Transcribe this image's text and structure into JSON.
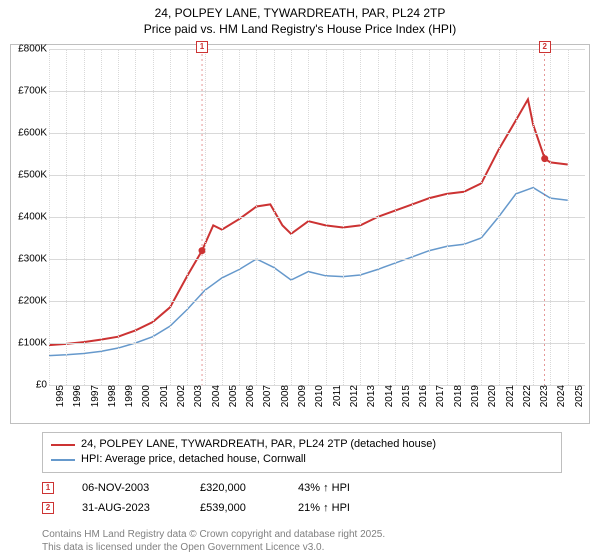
{
  "title_line1": "24, POLPEY LANE, TYWARDREATH, PAR, PL24 2TP",
  "title_line2": "Price paid vs. HM Land Registry's House Price Index (HPI)",
  "chart": {
    "type": "line",
    "x_min": 1995,
    "x_max": 2026,
    "y_min": 0,
    "y_max": 800000,
    "y_ticks": [
      {
        "v": 0,
        "label": "£0"
      },
      {
        "v": 100000,
        "label": "£100K"
      },
      {
        "v": 200000,
        "label": "£200K"
      },
      {
        "v": 300000,
        "label": "£300K"
      },
      {
        "v": 400000,
        "label": "£400K"
      },
      {
        "v": 500000,
        "label": "£500K"
      },
      {
        "v": 600000,
        "label": "£600K"
      },
      {
        "v": 700000,
        "label": "£700K"
      },
      {
        "v": 800000,
        "label": "£800K"
      }
    ],
    "x_ticks": [
      1995,
      1996,
      1997,
      1998,
      1999,
      2000,
      2001,
      2002,
      2003,
      2004,
      2005,
      2006,
      2007,
      2008,
      2009,
      2010,
      2011,
      2012,
      2013,
      2014,
      2015,
      2016,
      2017,
      2018,
      2019,
      2020,
      2021,
      2022,
      2023,
      2024,
      2025
    ],
    "grid_color": "#d9d9d9",
    "background_color": "#ffffff",
    "series": [
      {
        "name": "24, POLPEY LANE, TYWARDREATH, PAR, PL24 2TP (detached house)",
        "color": "#cc3333",
        "width": 2,
        "points": [
          [
            1995,
            95000
          ],
          [
            1996,
            98000
          ],
          [
            1997,
            102000
          ],
          [
            1998,
            108000
          ],
          [
            1999,
            115000
          ],
          [
            2000,
            130000
          ],
          [
            2001,
            150000
          ],
          [
            2002,
            185000
          ],
          [
            2003,
            260000
          ],
          [
            2003.85,
            320000
          ],
          [
            2004.5,
            380000
          ],
          [
            2005,
            370000
          ],
          [
            2006,
            395000
          ],
          [
            2007,
            425000
          ],
          [
            2007.8,
            430000
          ],
          [
            2008.5,
            380000
          ],
          [
            2009,
            360000
          ],
          [
            2010,
            390000
          ],
          [
            2011,
            380000
          ],
          [
            2012,
            375000
          ],
          [
            2013,
            380000
          ],
          [
            2014,
            400000
          ],
          [
            2015,
            415000
          ],
          [
            2016,
            430000
          ],
          [
            2017,
            445000
          ],
          [
            2018,
            455000
          ],
          [
            2019,
            460000
          ],
          [
            2020,
            480000
          ],
          [
            2021,
            560000
          ],
          [
            2022,
            630000
          ],
          [
            2022.7,
            680000
          ],
          [
            2023,
            620000
          ],
          [
            2023.67,
            539000
          ],
          [
            2024,
            530000
          ],
          [
            2025,
            525000
          ]
        ]
      },
      {
        "name": "HPI: Average price, detached house, Cornwall",
        "color": "#6699cc",
        "width": 1.5,
        "points": [
          [
            1995,
            70000
          ],
          [
            1996,
            72000
          ],
          [
            1997,
            75000
          ],
          [
            1998,
            80000
          ],
          [
            1999,
            88000
          ],
          [
            2000,
            100000
          ],
          [
            2001,
            115000
          ],
          [
            2002,
            140000
          ],
          [
            2003,
            180000
          ],
          [
            2004,
            225000
          ],
          [
            2005,
            255000
          ],
          [
            2006,
            275000
          ],
          [
            2007,
            300000
          ],
          [
            2008,
            280000
          ],
          [
            2009,
            250000
          ],
          [
            2010,
            270000
          ],
          [
            2011,
            260000
          ],
          [
            2012,
            258000
          ],
          [
            2013,
            262000
          ],
          [
            2014,
            275000
          ],
          [
            2015,
            290000
          ],
          [
            2016,
            305000
          ],
          [
            2017,
            320000
          ],
          [
            2018,
            330000
          ],
          [
            2019,
            335000
          ],
          [
            2020,
            350000
          ],
          [
            2021,
            400000
          ],
          [
            2022,
            455000
          ],
          [
            2023,
            470000
          ],
          [
            2024,
            445000
          ],
          [
            2025,
            440000
          ]
        ]
      }
    ],
    "markers": [
      {
        "label": "1",
        "x": 2003.85,
        "y": 320000
      },
      {
        "label": "2",
        "x": 2023.67,
        "y": 539000
      }
    ]
  },
  "legend": {
    "items": [
      {
        "color": "#cc3333",
        "width": 2,
        "label": "24, POLPEY LANE, TYWARDREATH, PAR, PL24 2TP (detached house)"
      },
      {
        "color": "#6699cc",
        "width": 1.5,
        "label": "HPI: Average price, detached house, Cornwall"
      }
    ]
  },
  "info_rows": [
    {
      "marker": "1",
      "date": "06-NOV-2003",
      "price": "£320,000",
      "hpi": "43% ↑ HPI"
    },
    {
      "marker": "2",
      "date": "31-AUG-2023",
      "price": "£539,000",
      "hpi": "21% ↑ HPI"
    }
  ],
  "footer_line1": "Contains HM Land Registry data © Crown copyright and database right 2025.",
  "footer_line2": "This data is licensed under the Open Government Licence v3.0."
}
